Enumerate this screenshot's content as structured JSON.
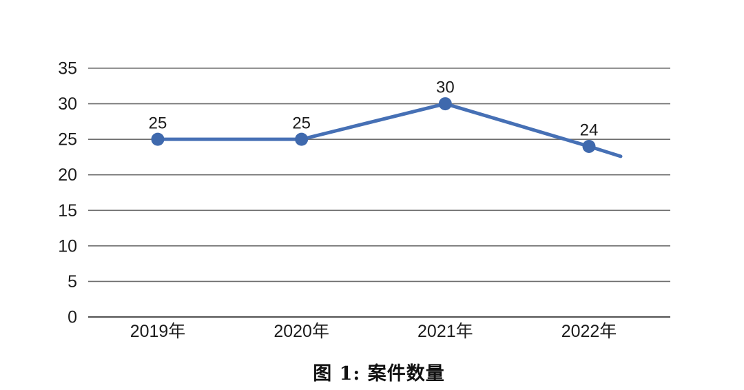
{
  "figure": {
    "caption": "图 1: 案件数量"
  },
  "chart_data": {
    "type": "line",
    "title": "图 1: 案件数量",
    "categories": [
      "2019年",
      "2020年",
      "2021年",
      "2022年"
    ],
    "series": [
      {
        "name": "案件数量",
        "values": [
          25,
          25,
          30,
          24
        ],
        "data_labels": [
          "25",
          "25",
          "30",
          "24"
        ]
      }
    ],
    "ylim": [
      0,
      35
    ],
    "yticks": [
      0,
      5,
      10,
      15,
      20,
      25,
      30,
      35
    ],
    "xlabel": "",
    "ylabel": "",
    "grid": "horizontal",
    "legend": "none",
    "tail": {
      "extends_past_last_point": true,
      "end_value": 22.6
    },
    "colors": {
      "line": "#4670b5",
      "marker": "#3f69ad",
      "gridline": "#6e6e6e",
      "axis": "#565656",
      "text": "#1c1c1c"
    }
  }
}
